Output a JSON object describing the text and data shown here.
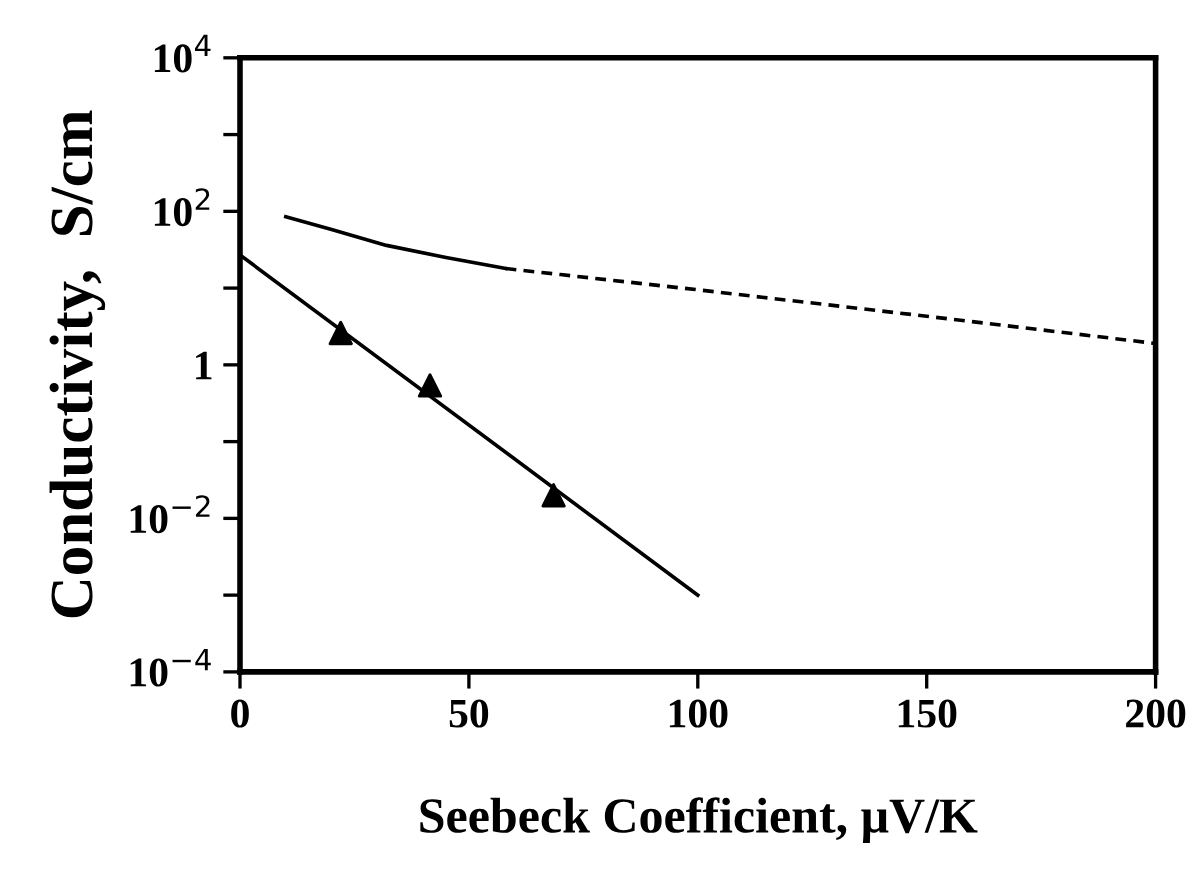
{
  "chart_data": {
    "type": "line",
    "xlabel": "Seebeck Coefficient, μV/K",
    "ylabel": "Conductivity,  S/cm",
    "log": "y",
    "grid": false,
    "xlim": [
      0,
      200
    ],
    "xticks": [
      0,
      50,
      100,
      150,
      200
    ],
    "ylim": [
      0.0001,
      10000
    ],
    "yticks": [
      {
        "value": 0.0001,
        "label": "10$^{−4}$"
      },
      {
        "value": 0.001,
        "label": null
      },
      {
        "value": 0.01,
        "label": "10$^{−2}$"
      },
      {
        "value": 0.1,
        "label": null
      },
      {
        "value": 1,
        "label": "1"
      },
      {
        "value": 10,
        "label": null
      },
      {
        "value": 100,
        "label": "10$^{2}$"
      },
      {
        "value": 1000,
        "label": null
      },
      {
        "value": 10000,
        "label": "10$^{4}$"
      }
    ],
    "series": [
      {
        "color": "#000000",
        "line_style": "solid",
        "marker": "none",
        "x": [
          10,
          20,
          32,
          45,
          58
        ],
        "values": [
          85,
          58,
          36,
          25,
          18
        ]
      },
      {
        "color": "#000000",
        "line_style": "dashed",
        "marker": "none",
        "x": [
          58,
          70,
          100,
          150,
          200
        ],
        "values": [
          18,
          15,
          9.5,
          4.3,
          1.9
        ]
      },
      {
        "color": "#000000",
        "line_style": "solid",
        "marker": "none",
        "x": [
          0,
          100
        ],
        "values": [
          27,
          0.001
        ]
      },
      {
        "type": "scatter",
        "color": "#000000",
        "marker": "triangle",
        "x": [
          22,
          41.5,
          68.5
        ],
        "values": [
          2.6,
          0.54,
          0.02
        ]
      }
    ]
  }
}
